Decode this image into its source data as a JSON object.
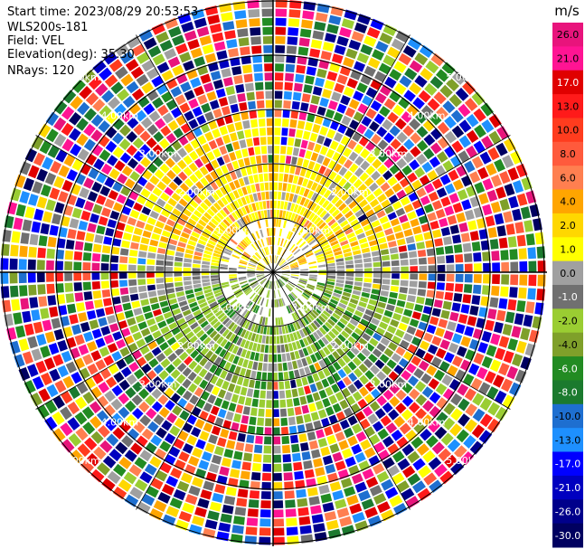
{
  "info": {
    "start_time": "Start time: 2023/08/29 20:53:53",
    "instrument": "WLS200s-181",
    "field": "Field: VEL",
    "elevation": "Elevation(deg): 35.30",
    "nrays": "NRays: 120"
  },
  "chart_data": {
    "type": "heatmap",
    "projection": "polar PPI",
    "field": "VEL",
    "nrays": 120,
    "units_label": "m/s",
    "range_ring_labels": [
      "1.00km",
      "2.00km",
      "3.00km",
      "4.00km",
      "5.00km"
    ],
    "colorbar": {
      "label": "m/s",
      "ticks": [
        "26.0",
        "21.0",
        "17.0",
        "13.0",
        "10.0",
        "8.0",
        "6.0",
        "4.0",
        "2.0",
        "1.0",
        "0.0",
        "-1.0",
        "-2.0",
        "-4.0",
        "-6.0",
        "-8.0",
        "-10.0",
        "-13.0",
        "-17.0",
        "-21.0",
        "-26.0",
        "-30.0"
      ],
      "colors": [
        "#e8147c",
        "#ff1493",
        "#e00000",
        "#ff1a1a",
        "#ff3c1e",
        "#ff5a3c",
        "#ff7f50",
        "#ffa500",
        "#ffd700",
        "#ffff00",
        "#a0a0a0",
        "#707070",
        "#9acd32",
        "#7fa02a",
        "#228b22",
        "#1b7a2e",
        "#1e6fd0",
        "#1e90ff",
        "#0000ff",
        "#0000c0",
        "#00008b",
        "#000060"
      ]
    }
  }
}
